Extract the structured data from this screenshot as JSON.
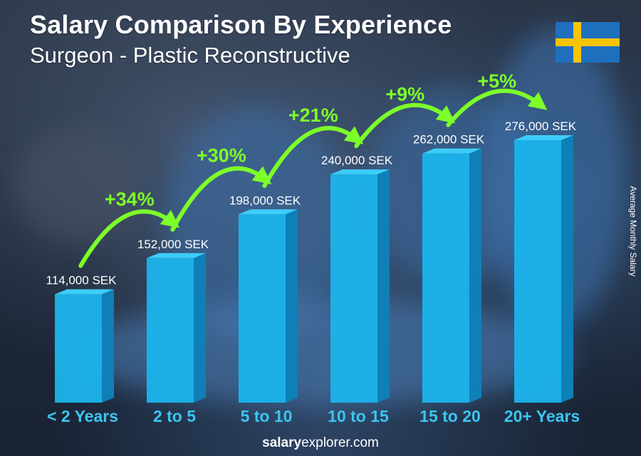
{
  "title": "Salary Comparison By Experience",
  "subtitle": "Surgeon - Plastic Reconstructive",
  "y_axis_label": "Average Monthly Salary",
  "footer": {
    "brand_bold": "salary",
    "brand_regular": "explorer.com"
  },
  "flag": {
    "country": "Sweden",
    "field_color": "#1f6fbf",
    "cross_color": "#f6c500"
  },
  "colors": {
    "bar_front": "#1bb4ec",
    "bar_side": "#0f7fb8",
    "bar_top": "#3dcdf8",
    "growth_text": "#7dff2a",
    "category_text": "#3bc6f2"
  },
  "chart_data": {
    "type": "bar",
    "title": "Salary Comparison By Experience",
    "subtitle": "Surgeon - Plastic Reconstructive",
    "ylabel": "Average Monthly Salary",
    "categories": [
      "< 2 Years",
      "2 to 5",
      "5 to 10",
      "10 to 15",
      "15 to 20",
      "20+ Years"
    ],
    "values": [
      114000,
      152000,
      198000,
      240000,
      262000,
      276000
    ],
    "value_labels": [
      "114,000 SEK",
      "152,000 SEK",
      "198,000 SEK",
      "240,000 SEK",
      "262,000 SEK",
      "276,000 SEK"
    ],
    "growth_labels": [
      "+34%",
      "+30%",
      "+21%",
      "+9%",
      "+5%"
    ],
    "ylim": [
      0,
      276000
    ],
    "grid": false
  }
}
